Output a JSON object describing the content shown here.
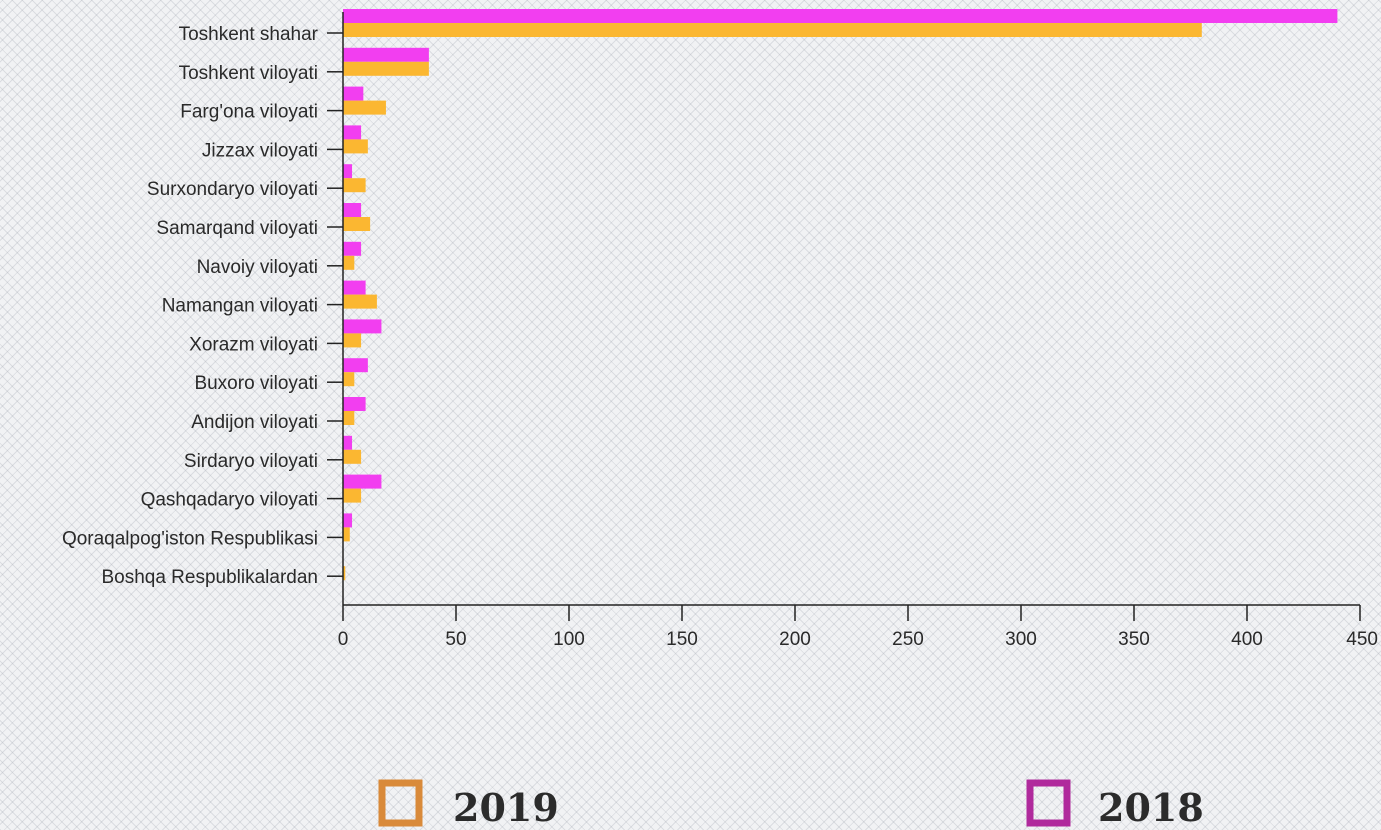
{
  "chart_data": {
    "type": "bar",
    "orientation": "horizontal",
    "categories": [
      "Toshkent shahar",
      "Toshkent viloyati",
      "Farg'ona viloyati",
      "Jizzax viloyati",
      "Surxondaryo viloyati",
      "Samarqand viloyati",
      "Navoiy viloyati",
      "Namangan viloyati",
      "Xorazm viloyati",
      "Buxoro viloyati",
      "Andijon viloyati",
      "Sirdaryo viloyati",
      "Qashqadaryo viloyati",
      "Qoraqalpog'iston Respublikasi",
      "Boshqa Respublikalardan"
    ],
    "series": [
      {
        "name": "2018",
        "color": "#f23ef0",
        "values": [
          440,
          38,
          9,
          8,
          4,
          8,
          8,
          10,
          17,
          11,
          10,
          4,
          17,
          4,
          0
        ]
      },
      {
        "name": "2019",
        "color": "#fbb731",
        "values": [
          380,
          38,
          19,
          11,
          10,
          12,
          5,
          15,
          8,
          5,
          5,
          8,
          8,
          3,
          1
        ]
      }
    ],
    "xlim": [
      0,
      450
    ],
    "xticks": [
      0,
      50,
      100,
      150,
      200,
      250,
      300,
      350,
      400,
      450
    ],
    "xlabel": "",
    "ylabel": "",
    "title": "",
    "grid": false,
    "legend": {
      "position": "bottom",
      "items": [
        {
          "label": "2019",
          "color": "#d98a3a"
        },
        {
          "label": "2018",
          "color": "#b02a9c"
        }
      ]
    }
  }
}
